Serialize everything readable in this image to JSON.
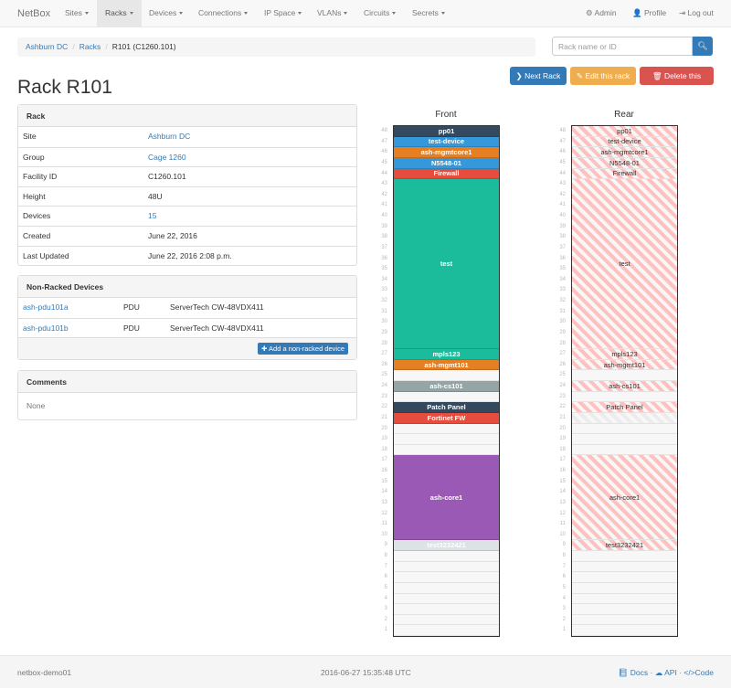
{
  "navbar": {
    "brand": "NetBox",
    "items": [
      "Sites",
      "Racks",
      "Devices",
      "Connections",
      "IP Space",
      "VLANs",
      "Circuits",
      "Secrets"
    ],
    "active": "Racks",
    "right": [
      {
        "icon": "gear-icon",
        "label": "Admin"
      },
      {
        "icon": "user-icon",
        "label": "Profile"
      },
      {
        "icon": "logout-icon",
        "label": "Log out"
      }
    ]
  },
  "breadcrumb": [
    "Ashburn DC",
    "Racks",
    "R101 (C1260.101)"
  ],
  "search": {
    "placeholder": "Rack name or ID",
    "icon": "search-icon"
  },
  "actions": {
    "next": "Next Rack",
    "edit": "Edit this rack",
    "delete": "Delete this rack",
    "colors": {
      "next": "#337ab7",
      "edit": "#f0ad4e",
      "delete": "#d9534f"
    }
  },
  "title": "Rack R101",
  "rack_panel": {
    "heading": "Rack",
    "rows": [
      {
        "label": "Site",
        "value": "Ashburn DC",
        "link": true
      },
      {
        "label": "Group",
        "value": "Cage 1260",
        "link": true
      },
      {
        "label": "Facility ID",
        "value": "C1260.101"
      },
      {
        "label": "Height",
        "value": "48U"
      },
      {
        "label": "Devices",
        "value": "15",
        "link": true
      },
      {
        "label": "Created",
        "value": "June 22, 2016"
      },
      {
        "label": "Last Updated",
        "value": "June 22, 2016 2:08 p.m."
      }
    ]
  },
  "non_racked": {
    "heading": "Non-Racked Devices",
    "rows": [
      {
        "name": "ash-pdu101a",
        "role": "PDU",
        "type": "ServerTech CW-48VDX411"
      },
      {
        "name": "ash-pdu101b",
        "role": "PDU",
        "type": "ServerTech CW-48VDX411"
      }
    ],
    "add_label": "Add a non-racked device"
  },
  "comments": {
    "heading": "Comments",
    "text": "None"
  },
  "rack": {
    "height_u": 48,
    "front_label": "Front",
    "rear_label": "Rear",
    "devices": [
      {
        "name": "pp01",
        "position": 48,
        "units": 1,
        "color": "#34495e"
      },
      {
        "name": "test-device",
        "position": 47,
        "units": 1,
        "color": "#3498db"
      },
      {
        "name": "ash-mgmtcore1",
        "position": 46,
        "units": 1,
        "color": "#e67e22"
      },
      {
        "name": "N5548-01",
        "position": 45,
        "units": 1,
        "color": "#3498db"
      },
      {
        "name": "Firewall",
        "position": 44,
        "units": 1,
        "color": "#e74c3c"
      },
      {
        "name": "test",
        "position": 28,
        "units": 16,
        "color": "#1abc9c"
      },
      {
        "name": "mpls123",
        "position": 27,
        "units": 1,
        "color": "#1abc9c"
      },
      {
        "name": "ash-mgmt101",
        "position": 26,
        "units": 1,
        "color": "#e67e22"
      },
      {
        "name": "ash-cs101",
        "position": 24,
        "units": 1,
        "color": "#95a5a6"
      },
      {
        "name": "Patch Panel",
        "position": 22,
        "units": 1,
        "color": "#34495e"
      },
      {
        "name": "Fortinet FW",
        "position": 21,
        "units": 1,
        "color": "#e74c3c",
        "half_depth": true
      },
      {
        "name": "ash-core1",
        "position": 10,
        "units": 8,
        "color": "#9b59b6"
      },
      {
        "name": "test3232421",
        "position": 9,
        "units": 1,
        "color": "#dce2e5"
      }
    ]
  },
  "footer": {
    "host": "netbox-demo01",
    "time": "2016-06-27 15:35:48 UTC",
    "links": [
      "Docs",
      "API",
      "Code"
    ]
  }
}
